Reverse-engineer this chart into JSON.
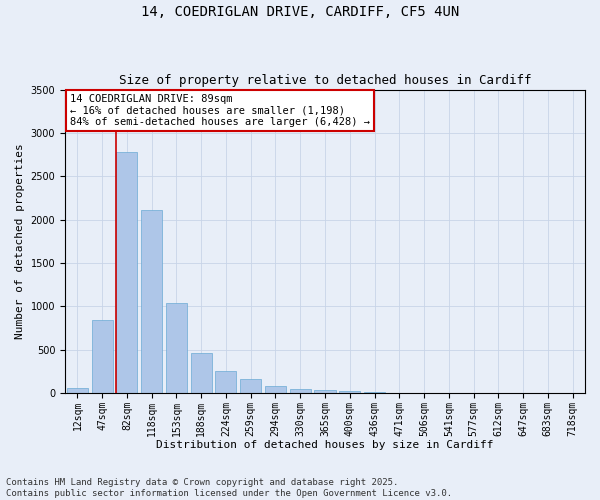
{
  "title1": "14, COEDRIGLAN DRIVE, CARDIFF, CF5 4UN",
  "title2": "Size of property relative to detached houses in Cardiff",
  "xlabel": "Distribution of detached houses by size in Cardiff",
  "ylabel": "Number of detached properties",
  "categories": [
    "12sqm",
    "47sqm",
    "82sqm",
    "118sqm",
    "153sqm",
    "188sqm",
    "224sqm",
    "259sqm",
    "294sqm",
    "330sqm",
    "365sqm",
    "400sqm",
    "436sqm",
    "471sqm",
    "506sqm",
    "541sqm",
    "577sqm",
    "612sqm",
    "647sqm",
    "683sqm",
    "718sqm"
  ],
  "values": [
    55,
    840,
    2780,
    2110,
    1040,
    460,
    250,
    160,
    75,
    50,
    35,
    20,
    10,
    5,
    2,
    1,
    1,
    0,
    0,
    0,
    0
  ],
  "bar_color": "#aec6e8",
  "bar_edge_color": "#6aaad4",
  "vline_color": "#cc0000",
  "vline_x_index": 1.575,
  "annotation_text": "14 COEDRIGLAN DRIVE: 89sqm\n← 16% of detached houses are smaller (1,198)\n84% of semi-detached houses are larger (6,428) →",
  "annotation_box_color": "#cc0000",
  "annotation_bg": "white",
  "ylim": [
    0,
    3500
  ],
  "yticks": [
    0,
    500,
    1000,
    1500,
    2000,
    2500,
    3000,
    3500
  ],
  "grid_color": "#c8d4e8",
  "background_color": "#e8eef8",
  "footnote": "Contains HM Land Registry data © Crown copyright and database right 2025.\nContains public sector information licensed under the Open Government Licence v3.0.",
  "title1_fontsize": 10,
  "title2_fontsize": 9,
  "xlabel_fontsize": 8,
  "ylabel_fontsize": 8,
  "tick_fontsize": 7,
  "annotation_fontsize": 7.5,
  "footnote_fontsize": 6.5
}
